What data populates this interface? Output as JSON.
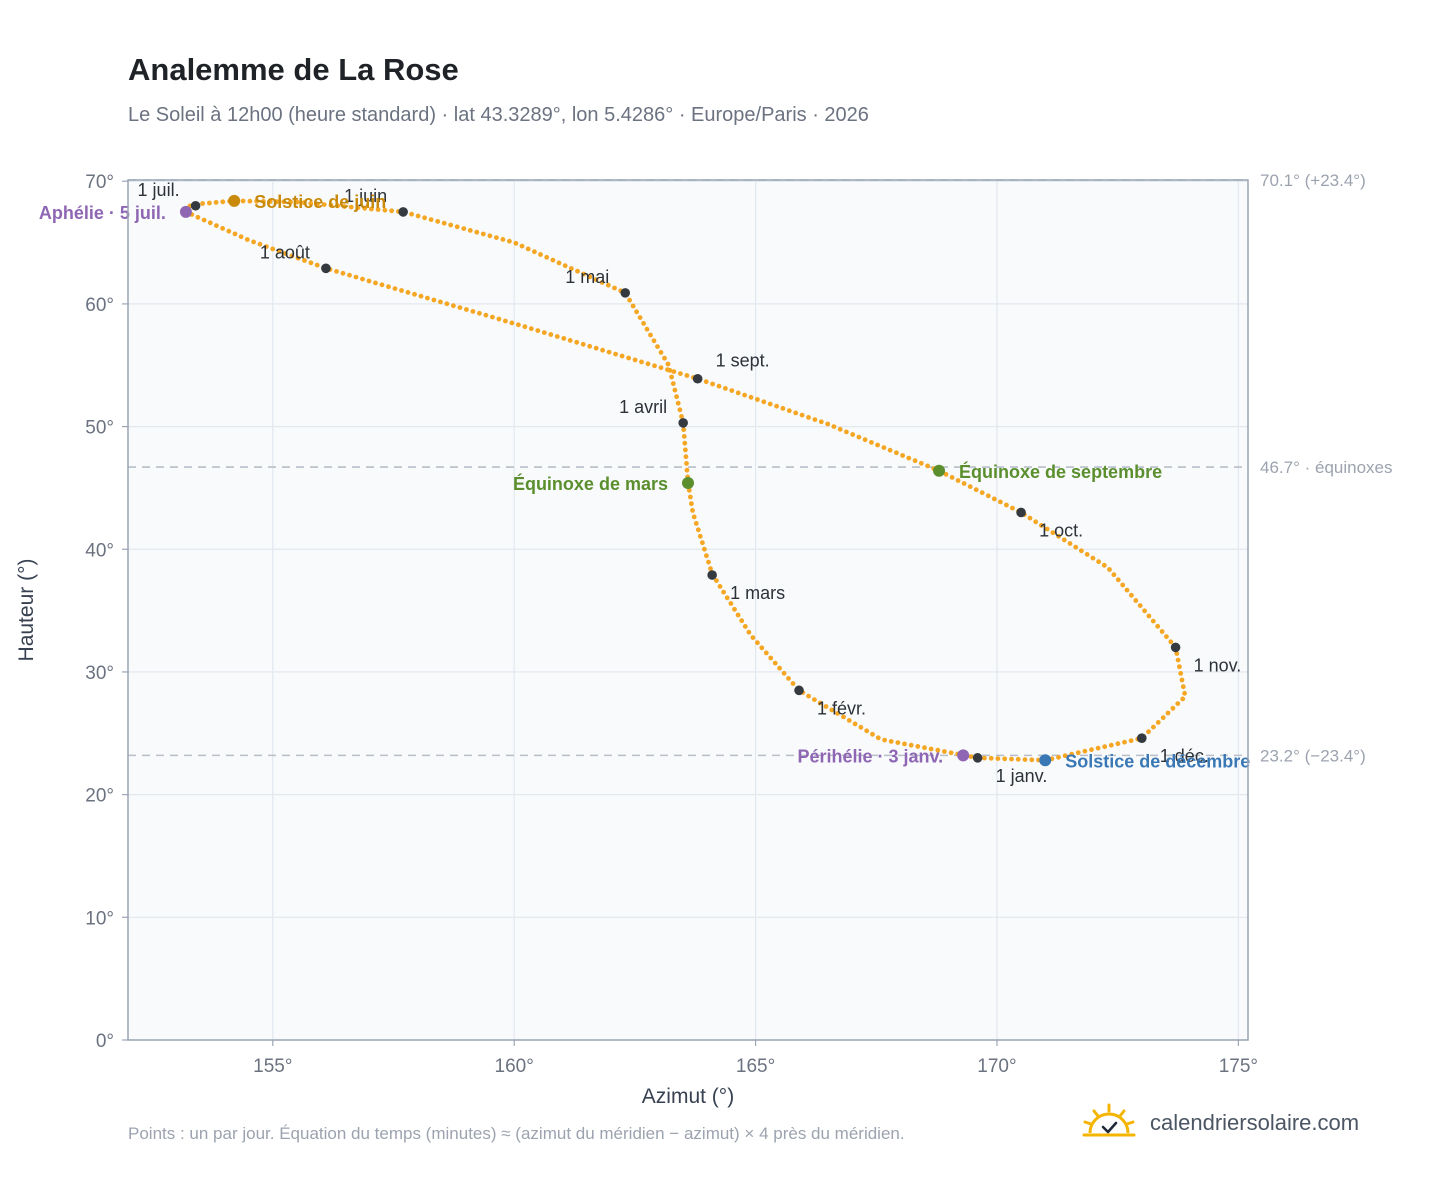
{
  "title": "Analemme de La Rose",
  "subtitle": "Le Soleil à 12h00 (heure standard) · lat 43.3289°, lon 5.4286° · Europe/Paris · 2026",
  "footnote": "Points : un par jour. Équation du temps (minutes) ≈ (azimut du méridien − azimut) × 4 près du méridien.",
  "brand": {
    "name": "calendriersolaire.com",
    "icon": "sun-check-icon"
  },
  "colors": {
    "curve": "#f5a623",
    "month_marker": "#343a40",
    "solstice_june": "#c98a0c",
    "solstice_december": "#3a78b5",
    "equinox": "#5b8f2e",
    "apsis": "#8e66b3",
    "plot_bg": "#f8fafc",
    "grid": "#e2e8f0",
    "ref_line": "#b8bfc9"
  },
  "chart_data": {
    "type": "scatter",
    "xlabel": "Azimut (°)",
    "ylabel": "Hauteur (°)",
    "xlim": [
      152,
      175.2
    ],
    "ylim": [
      0,
      70.1
    ],
    "x_ticks": [
      {
        "v": 155,
        "label": "155°"
      },
      {
        "v": 160,
        "label": "160°"
      },
      {
        "v": 165,
        "label": "165°"
      },
      {
        "v": 170,
        "label": "170°"
      },
      {
        "v": 175,
        "label": "175°"
      }
    ],
    "y_ticks": [
      {
        "v": 0,
        "label": "0°"
      },
      {
        "v": 10,
        "label": "10°"
      },
      {
        "v": 20,
        "label": "20°"
      },
      {
        "v": 30,
        "label": "30°"
      },
      {
        "v": 40,
        "label": "40°"
      },
      {
        "v": 50,
        "label": "50°"
      },
      {
        "v": 60,
        "label": "60°"
      },
      {
        "v": 70,
        "label": "70°"
      }
    ],
    "grid": true,
    "reference_lines": [
      {
        "y": 70.1,
        "label": "70.1° (+23.4°)"
      },
      {
        "y": 46.7,
        "label": "46.7° · équinoxes"
      },
      {
        "y": 23.2,
        "label": "23.2° (−23.4°)"
      }
    ],
    "series_description": "un point par jour",
    "analemma_path": [
      {
        "az": 169.6,
        "alt": 23.0
      },
      {
        "az": 167.6,
        "alt": 24.5
      },
      {
        "az": 165.9,
        "alt": 28.5
      },
      {
        "az": 164.9,
        "alt": 33.0
      },
      {
        "az": 164.1,
        "alt": 38.0
      },
      {
        "az": 163.7,
        "alt": 43.0
      },
      {
        "az": 163.6,
        "alt": 45.5
      },
      {
        "az": 163.5,
        "alt": 50.3
      },
      {
        "az": 163.2,
        "alt": 55.0
      },
      {
        "az": 162.3,
        "alt": 60.9
      },
      {
        "az": 160.0,
        "alt": 65.0
      },
      {
        "az": 157.7,
        "alt": 67.5
      },
      {
        "az": 155.5,
        "alt": 68.3
      },
      {
        "az": 154.2,
        "alt": 68.4
      },
      {
        "az": 153.3,
        "alt": 68.1
      },
      {
        "az": 153.2,
        "alt": 67.5
      },
      {
        "az": 154.5,
        "alt": 65.2
      },
      {
        "az": 156.1,
        "alt": 62.9
      },
      {
        "az": 160.0,
        "alt": 58.4
      },
      {
        "az": 163.8,
        "alt": 53.9
      },
      {
        "az": 166.5,
        "alt": 50.2
      },
      {
        "az": 168.8,
        "alt": 46.4
      },
      {
        "az": 170.5,
        "alt": 43.0
      },
      {
        "az": 172.3,
        "alt": 38.5
      },
      {
        "az": 173.7,
        "alt": 32.0
      },
      {
        "az": 173.9,
        "alt": 28.0
      },
      {
        "az": 173.0,
        "alt": 24.6
      },
      {
        "az": 171.0,
        "alt": 22.8
      },
      {
        "az": 169.6,
        "alt": 23.0
      }
    ],
    "month_markers": [
      {
        "label": "1 janv.",
        "az": 169.6,
        "alt": 23.0,
        "pos": "below-right"
      },
      {
        "label": "1 févr.",
        "az": 165.9,
        "alt": 28.5,
        "pos": "below-right"
      },
      {
        "label": "1 mars",
        "az": 164.1,
        "alt": 37.9,
        "pos": "below-right"
      },
      {
        "label": "1 avril",
        "az": 163.5,
        "alt": 50.3,
        "pos": "above-left"
      },
      {
        "label": "1 mai",
        "az": 162.3,
        "alt": 60.9,
        "pos": "above-left"
      },
      {
        "label": "1 juin",
        "az": 157.7,
        "alt": 67.5,
        "pos": "above-left"
      },
      {
        "label": "1 juil.",
        "az": 153.4,
        "alt": 68.0,
        "pos": "above-left"
      },
      {
        "label": "1 août",
        "az": 156.1,
        "alt": 62.9,
        "pos": "above-left"
      },
      {
        "label": "1 sept.",
        "az": 163.8,
        "alt": 53.9,
        "pos": "above-right"
      },
      {
        "label": "1 oct.",
        "az": 170.5,
        "alt": 43.0,
        "pos": "below-right"
      },
      {
        "label": "1 nov.",
        "az": 173.7,
        "alt": 32.0,
        "pos": "below-right"
      },
      {
        "label": "1 déc.",
        "az": 173.0,
        "alt": 24.6,
        "pos": "below-right"
      }
    ],
    "events": [
      {
        "label": "Solstice de juin",
        "az": 154.2,
        "alt": 68.4,
        "color_key": "solstice_june",
        "pos": "right"
      },
      {
        "label": "Aphélie · 5 juil.",
        "az": 153.2,
        "alt": 67.5,
        "color_key": "apsis",
        "pos": "left"
      },
      {
        "label": "Équinoxe de mars",
        "az": 163.6,
        "alt": 45.4,
        "color_key": "equinox",
        "pos": "left"
      },
      {
        "label": "Équinoxe de septembre",
        "az": 168.8,
        "alt": 46.4,
        "color_key": "equinox",
        "pos": "right"
      },
      {
        "label": "Périhélie · 3 janv.",
        "az": 169.3,
        "alt": 23.2,
        "color_key": "apsis",
        "pos": "left"
      },
      {
        "label": "Solstice de décembre",
        "az": 171.0,
        "alt": 22.8,
        "color_key": "solstice_december",
        "pos": "right"
      }
    ]
  }
}
